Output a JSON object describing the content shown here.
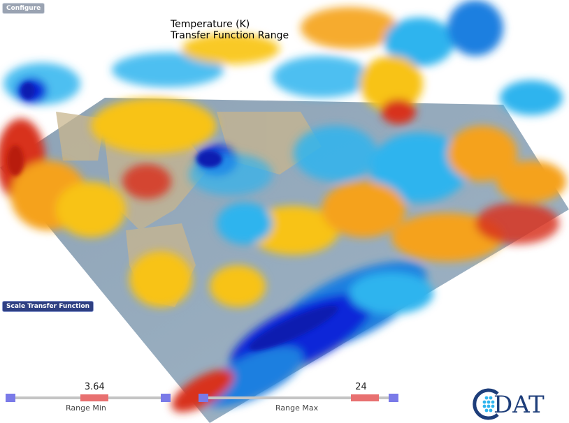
{
  "toolbar": {
    "configure_label": "Configure",
    "scale_tf_label": "Scale Transfer Function"
  },
  "title": {
    "line1": "Temperature (K)",
    "line2": "Transfer Function Range"
  },
  "sliders": {
    "range_min": {
      "label": "Range Min",
      "value": "3.64",
      "position": 0.54
    },
    "range_max": {
      "label": "Range Max",
      "value": "24",
      "position": 0.85
    }
  },
  "logo": {
    "text": "DAT"
  },
  "colors": {
    "deep_blue": "#0a28d8",
    "blue": "#1f7fe0",
    "cyan": "#2fb4ee",
    "yellow": "#f8c313",
    "orange": "#f5a21b",
    "red": "#d8321c",
    "handle": "#7a7ae8",
    "range_handle": "#e87070",
    "button_primary": "#2e3f82",
    "logo": "#1e3e7a"
  }
}
